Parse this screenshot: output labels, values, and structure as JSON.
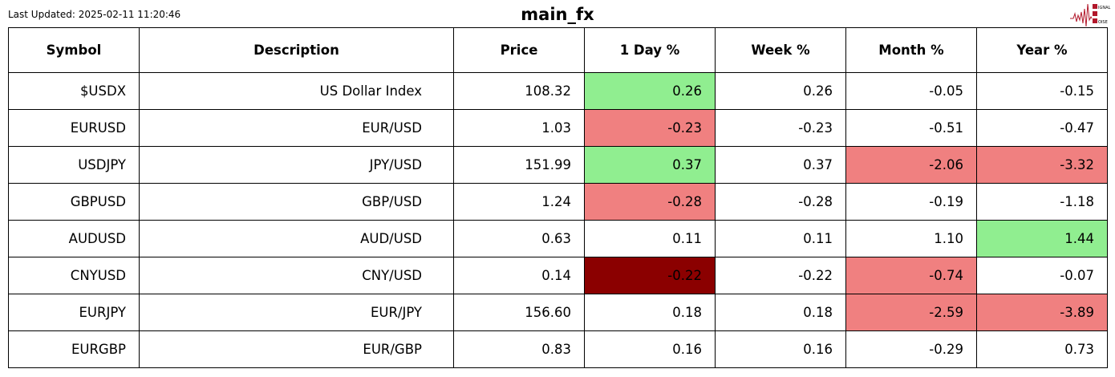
{
  "last_updated": "Last Updated: 2025-02-11 11:20:46",
  "title": "main_fx",
  "logo_text": "SIGNAL 2 NOISE",
  "colors": {
    "green": "#90ee90",
    "red": "#f08080",
    "darkred": "#8b0000",
    "none": "#ffffff"
  },
  "chart_data": {
    "type": "table",
    "columns": [
      "Symbol",
      "Description",
      "Price",
      "1 Day %",
      "Week %",
      "Month %",
      "Year %"
    ],
    "rows": [
      {
        "cells": [
          "$USDX",
          "US Dollar Index",
          "108.32",
          "0.26",
          "0.26",
          "-0.05",
          "-0.15"
        ],
        "highlight": [
          "none",
          "none",
          "none",
          "green",
          "none",
          "none",
          "none"
        ]
      },
      {
        "cells": [
          "EURUSD",
          "EUR/USD",
          "1.03",
          "-0.23",
          "-0.23",
          "-0.51",
          "-0.47"
        ],
        "highlight": [
          "none",
          "none",
          "none",
          "red",
          "none",
          "none",
          "none"
        ]
      },
      {
        "cells": [
          "USDJPY",
          "JPY/USD",
          "151.99",
          "0.37",
          "0.37",
          "-2.06",
          "-3.32"
        ],
        "highlight": [
          "none",
          "none",
          "none",
          "green",
          "none",
          "red",
          "red"
        ]
      },
      {
        "cells": [
          "GBPUSD",
          "GBP/USD",
          "1.24",
          "-0.28",
          "-0.28",
          "-0.19",
          "-1.18"
        ],
        "highlight": [
          "none",
          "none",
          "none",
          "red",
          "none",
          "none",
          "none"
        ]
      },
      {
        "cells": [
          "AUDUSD",
          "AUD/USD",
          "0.63",
          "0.11",
          "0.11",
          "1.10",
          "1.44"
        ],
        "highlight": [
          "none",
          "none",
          "none",
          "none",
          "none",
          "none",
          "green"
        ]
      },
      {
        "cells": [
          "CNYUSD",
          "CNY/USD",
          "0.14",
          "-0.22",
          "-0.22",
          "-0.74",
          "-0.07"
        ],
        "highlight": [
          "none",
          "none",
          "none",
          "darkred",
          "none",
          "red",
          "none"
        ]
      },
      {
        "cells": [
          "EURJPY",
          "EUR/JPY",
          "156.60",
          "0.18",
          "0.18",
          "-2.59",
          "-3.89"
        ],
        "highlight": [
          "none",
          "none",
          "none",
          "none",
          "none",
          "red",
          "red"
        ]
      },
      {
        "cells": [
          "EURGBP",
          "EUR/GBP",
          "0.83",
          "0.16",
          "0.16",
          "-0.29",
          "0.73"
        ],
        "highlight": [
          "none",
          "none",
          "none",
          "none",
          "none",
          "none",
          "none"
        ]
      }
    ]
  }
}
